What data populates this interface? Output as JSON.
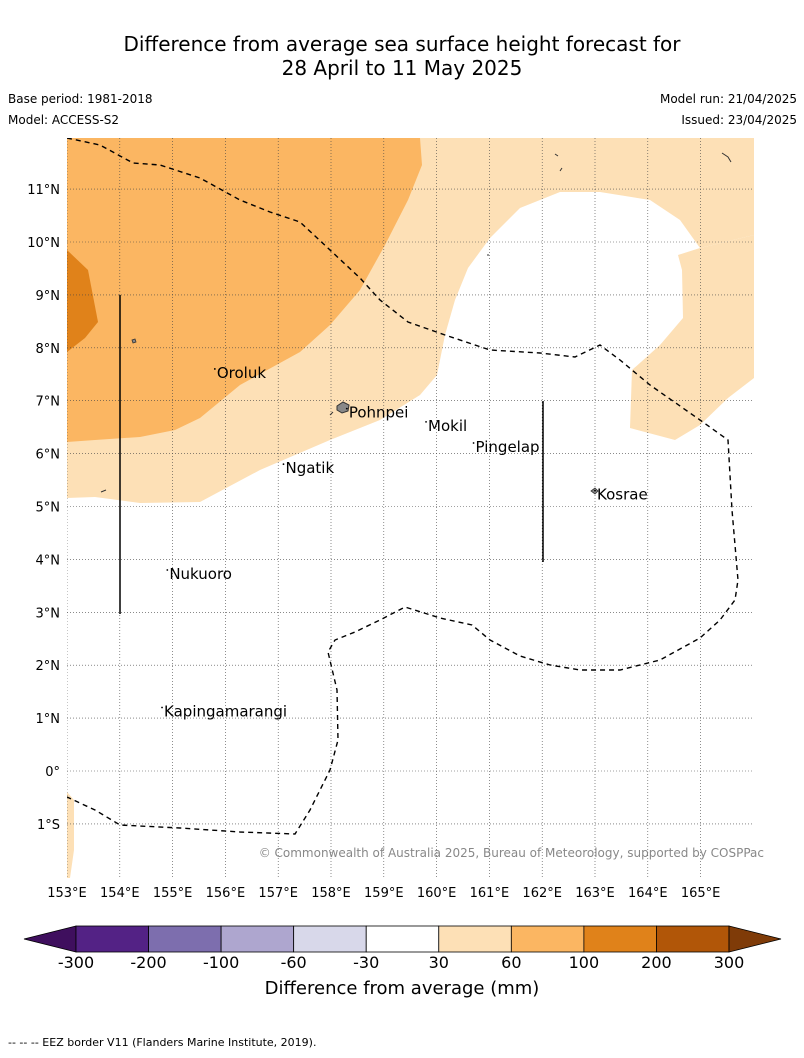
{
  "title": {
    "line1": "Difference from average sea surface height forecast for",
    "line2": "28 April to 11 May 2025"
  },
  "meta": {
    "base_period": "Base period: 1981-2018",
    "model": "Model: ACCESS-S2",
    "model_run": "Model run: 21/04/2025",
    "issued": "Issued: 23/04/2025"
  },
  "map": {
    "lon_range": [
      153,
      166
    ],
    "lat_range": [
      -2,
      12
    ],
    "lon_ticks": [
      153,
      154,
      155,
      156,
      157,
      158,
      159,
      160,
      161,
      162,
      163,
      164,
      165
    ],
    "lon_tick_labels": [
      "153°E",
      "154°E",
      "155°E",
      "156°E",
      "157°E",
      "158°E",
      "159°E",
      "160°E",
      "161°E",
      "162°E",
      "163°E",
      "164°E",
      "165°E"
    ],
    "lat_ticks": [
      11,
      10,
      9,
      8,
      7,
      6,
      5,
      4,
      3,
      2,
      1,
      0,
      -1
    ],
    "lat_tick_labels": [
      "11°N",
      "10°N",
      "9°N",
      "8°N",
      "7°N",
      "6°N",
      "5°N",
      "4°N",
      "3°N",
      "2°N",
      "1°N",
      "0°",
      "1°S"
    ],
    "places": [
      {
        "name": "Oroluk",
        "lon": 155.8,
        "lat": 7.6
      },
      {
        "name": "Pohnpei",
        "lon": 158.3,
        "lat": 6.85
      },
      {
        "name": "Mokil",
        "lon": 159.8,
        "lat": 6.6
      },
      {
        "name": "Pingelap",
        "lon": 160.7,
        "lat": 6.2
      },
      {
        "name": "Ngatik",
        "lon": 157.1,
        "lat": 5.8
      },
      {
        "name": "Kosrae",
        "lon": 163.0,
        "lat": 5.3
      },
      {
        "name": "Nukuoro",
        "lon": 154.9,
        "lat": 3.8
      },
      {
        "name": "Kapingamarangi",
        "lon": 154.8,
        "lat": 1.2
      }
    ],
    "copyright": "© Commonwealth of Australia 2025, Bureau of Meteorology, supported by COSPPac"
  },
  "colorbar": {
    "title": "Difference from average (mm)",
    "tick_labels": [
      "-300",
      "-200",
      "-100",
      "-60",
      "-30",
      "30",
      "60",
      "100",
      "200",
      "300"
    ],
    "colors": [
      "#3f0f5e",
      "#532285",
      "#7d6eae",
      "#aea6cf",
      "#d8d8ea",
      "#ffffff",
      "#fde0b6",
      "#fbb662",
      "#e0821a",
      "#b15608",
      "#7f3b08"
    ]
  },
  "legend_note": "--  --  -- EEZ border V11 (Flanders Marine Institute, 2019)."
}
